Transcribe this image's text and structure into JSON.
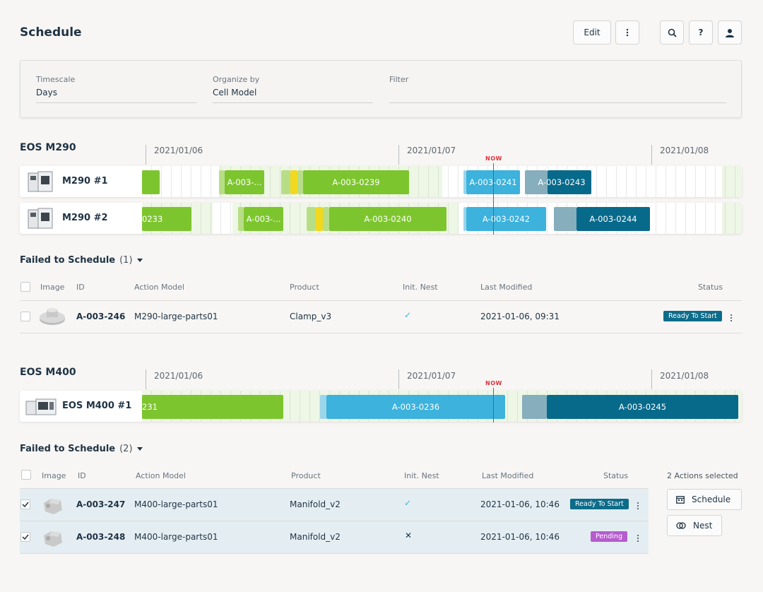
{
  "header": {
    "title": "Schedule",
    "edit_label": "Edit",
    "icons": {
      "more": "more-vertical-icon",
      "search": "search-icon",
      "help": "help-icon",
      "user": "user-icon"
    },
    "help_glyph": "?"
  },
  "filters": {
    "timescale": {
      "label": "Timescale",
      "value": "Days"
    },
    "organize_by": {
      "label": "Organize by",
      "value": "Cell Model"
    },
    "filter": {
      "label": "Filter",
      "value": ""
    }
  },
  "colors": {
    "green": "#7dc52e",
    "green_light": "#b7de86",
    "yellow": "#f2d81f",
    "blue": "#3cb2dc",
    "blue_light": "#9ad5ec",
    "teal_dark": "#086a8b",
    "teal_light": "#86aebc",
    "now": "#e0303a",
    "status_ready": "#0d6c8a",
    "status_pending": "#b65ccf"
  },
  "timeline": {
    "dates": [
      "2021/01/06",
      "2021/01/07",
      "2021/01/08"
    ],
    "now_label": "NOW"
  },
  "section_m290": {
    "title": "EOS M290",
    "machines": [
      {
        "name": "M290 #1",
        "jobs": [
          "",
          "A-003-...",
          "A-003-0239",
          "A-003-0241",
          "A-003-0243"
        ]
      },
      {
        "name": "M290 #2",
        "jobs": [
          "0233",
          "A-003-...",
          "A-003-0240",
          "A-003-0242",
          "A-003-0244"
        ]
      }
    ],
    "failed": {
      "title": "Failed to Schedule",
      "count": "(1)",
      "columns": [
        "Image",
        "ID",
        "Action Model",
        "Product",
        "Init. Nest",
        "Last Modified",
        "Status"
      ],
      "rows": [
        {
          "id": "A-003-246",
          "action_model": "M290-large-parts01",
          "product": "Clamp_v3",
          "init_nest": "✓",
          "last_modified": "2021-01-06, 09:31",
          "status": "Ready To Start"
        }
      ]
    }
  },
  "section_m400": {
    "title": "EOS M400",
    "machines": [
      {
        "name": "EOS M400 #1",
        "jobs": [
          "231",
          "A-003-0236",
          "A-003-0245"
        ]
      }
    ],
    "failed": {
      "title": "Failed to Schedule",
      "count": "(2)",
      "columns": [
        "Image",
        "ID",
        "Action Model",
        "Product",
        "Init. Nest",
        "Last Modified",
        "Status"
      ],
      "rows": [
        {
          "id": "A-003-247",
          "action_model": "M400-large-parts01",
          "product": "Manifold_v2",
          "init_nest": "✓",
          "last_modified": "2021-01-06, 10:46",
          "status": "Ready To Start",
          "selected": true
        },
        {
          "id": "A-003-248",
          "action_model": "M400-large-parts01",
          "product": "Manifold_v2",
          "init_nest": "✕",
          "last_modified": "2021-01-06, 10:46",
          "status": "Pending",
          "selected": true
        }
      ],
      "selection": {
        "summary": "2 Actions selected",
        "schedule_label": "Schedule",
        "nest_label": "Nest"
      }
    }
  }
}
